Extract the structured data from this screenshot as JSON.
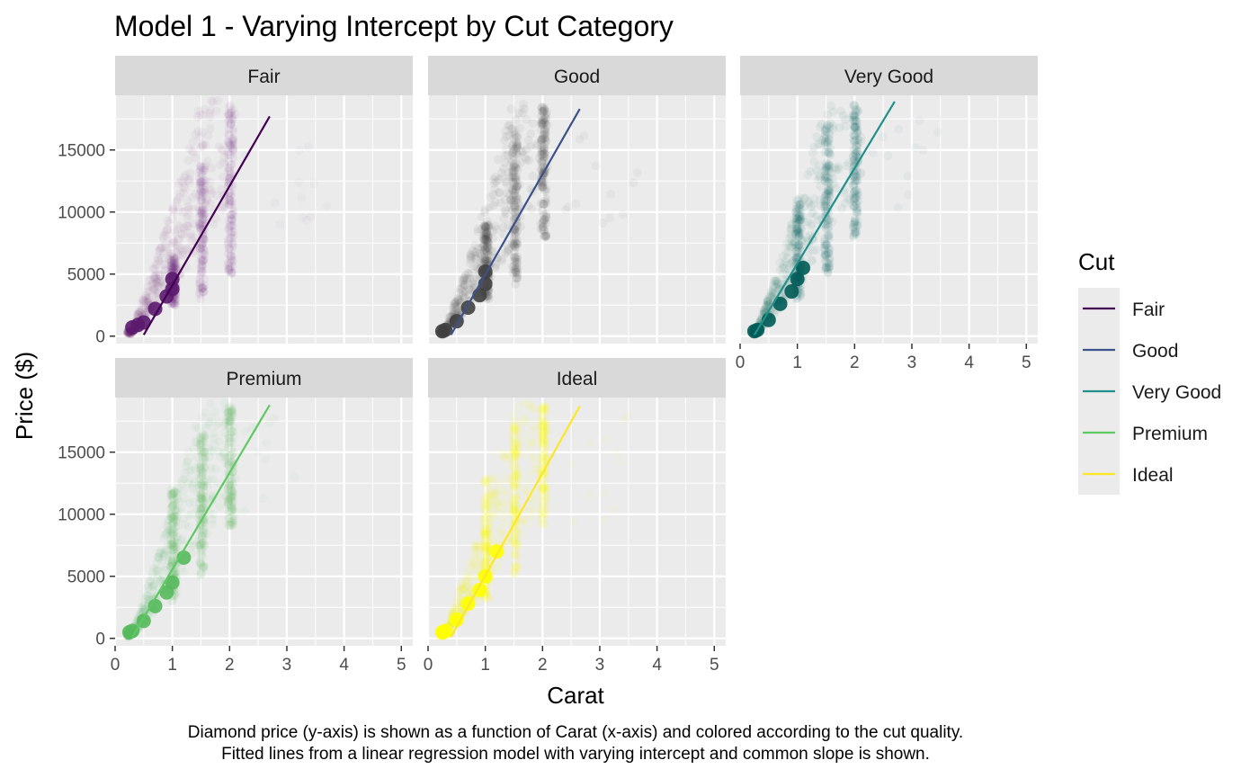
{
  "title": "Model 1 - Varying Intercept by Cut Category",
  "caption_lines": [
    "Diamond price (y-axis) is shown as a function of Carat (x-axis) and colored according to the cut quality.",
    "Fitted lines from a linear regression model with varying intercept and common slope is shown."
  ],
  "chart_data": {
    "type": "scatter",
    "facet_by": "Cut",
    "xlabel": "Carat",
    "ylabel": "Price ($)",
    "xlim": [
      0,
      5.2
    ],
    "ylim": [
      -600,
      19400
    ],
    "x_ticks": [
      0,
      1,
      2,
      3,
      4,
      5
    ],
    "y_ticks": [
      0,
      5000,
      10000,
      15000
    ],
    "grid": true,
    "legend": {
      "title": "Cut",
      "position": "right"
    },
    "panels": [
      {
        "name": "Fair",
        "color": "#440154",
        "point_color": "#5b1a6e",
        "point_alpha": 0.04,
        "fit_line": {
          "x": [
            0.5,
            2.7
          ],
          "y": [
            100,
            17700
          ]
        },
        "dense_points": [
          [
            0.3,
            700
          ],
          [
            0.4,
            900
          ],
          [
            0.5,
            1100
          ],
          [
            0.7,
            2200
          ],
          [
            0.9,
            3200
          ],
          [
            1.0,
            3800
          ],
          [
            1.0,
            4600
          ]
        ],
        "clusters": [
          {
            "x": 1.0,
            "y_range": [
              2500,
              6500
            ]
          },
          {
            "x": 1.5,
            "y_range": [
              3000,
              14000
            ]
          },
          {
            "x": 2.0,
            "y_range": [
              5000,
              18500
            ]
          }
        ]
      },
      {
        "name": "Good",
        "color": "#3b528b",
        "point_color": "#404040",
        "point_alpha": 0.06,
        "fit_line": {
          "x": [
            0.4,
            2.65
          ],
          "y": [
            100,
            18300
          ]
        },
        "dense_points": [
          [
            0.25,
            400
          ],
          [
            0.3,
            500
          ],
          [
            0.5,
            1200
          ],
          [
            0.7,
            2300
          ],
          [
            0.9,
            3300
          ],
          [
            1.0,
            4200
          ],
          [
            1.0,
            5200
          ]
        ],
        "clusters": [
          {
            "x": 1.0,
            "y_range": [
              3000,
              9000
            ]
          },
          {
            "x": 1.5,
            "y_range": [
              4000,
              16500
            ]
          },
          {
            "x": 2.0,
            "y_range": [
              8000,
              18500
            ]
          }
        ]
      },
      {
        "name": "Very Good",
        "color": "#21908c",
        "point_color": "#005b56",
        "point_alpha": 0.05,
        "fit_line": {
          "x": [
            0.25,
            2.7
          ],
          "y": [
            100,
            18900
          ]
        },
        "dense_points": [
          [
            0.25,
            400
          ],
          [
            0.3,
            500
          ],
          [
            0.5,
            1300
          ],
          [
            0.7,
            2600
          ],
          [
            0.9,
            3600
          ],
          [
            1.0,
            4600
          ],
          [
            1.1,
            5500
          ]
        ],
        "clusters": [
          {
            "x": 1.0,
            "y_range": [
              3000,
              11000
            ]
          },
          {
            "x": 1.5,
            "y_range": [
              5000,
              17000
            ]
          },
          {
            "x": 2.0,
            "y_range": [
              8000,
              18800
            ]
          }
        ]
      },
      {
        "name": "Premium",
        "color": "#5ec962",
        "point_color": "#56b95c",
        "point_alpha": 0.05,
        "fit_line": {
          "x": [
            0.3,
            2.7
          ],
          "y": [
            100,
            18800
          ]
        },
        "dense_points": [
          [
            0.25,
            500
          ],
          [
            0.3,
            600
          ],
          [
            0.5,
            1400
          ],
          [
            0.7,
            2600
          ],
          [
            0.9,
            3700
          ],
          [
            1.0,
            4500
          ],
          [
            1.2,
            6500
          ]
        ],
        "clusters": [
          {
            "x": 1.0,
            "y_range": [
              3000,
              12000
            ]
          },
          {
            "x": 1.5,
            "y_range": [
              5000,
              16500
            ]
          },
          {
            "x": 2.0,
            "y_range": [
              9000,
              18800
            ]
          }
        ]
      },
      {
        "name": "Ideal",
        "color": "#fde725",
        "point_color": "#ffff00",
        "point_alpha": 0.05,
        "fit_line": {
          "x": [
            0.4,
            2.65
          ],
          "y": [
            100,
            18700
          ]
        },
        "dense_points": [
          [
            0.25,
            500
          ],
          [
            0.3,
            600
          ],
          [
            0.5,
            1500
          ],
          [
            0.7,
            2800
          ],
          [
            0.9,
            3900
          ],
          [
            1.0,
            5000
          ],
          [
            1.2,
            7000
          ]
        ],
        "clusters": [
          {
            "x": 1.0,
            "y_range": [
              3000,
              13000
            ]
          },
          {
            "x": 1.5,
            "y_range": [
              5000,
              17500
            ]
          },
          {
            "x": 2.0,
            "y_range": [
              9000,
              18800
            ]
          }
        ]
      }
    ]
  }
}
